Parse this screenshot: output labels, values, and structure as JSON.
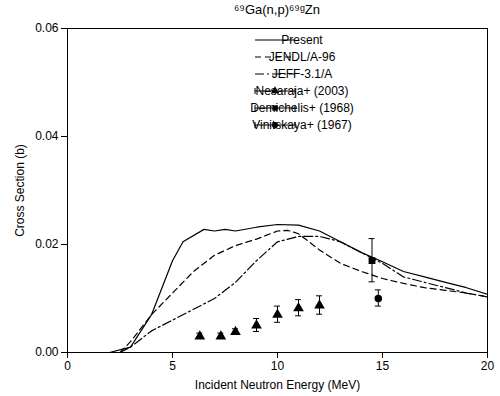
{
  "chart_data": {
    "type": "line",
    "title": "⁶⁹Ga(n,p)⁶⁹ᵍZn",
    "x_label": "Incident Neutron Energy (MeV)",
    "y_label": "Cross Section (b)",
    "xlim": [
      0,
      20
    ],
    "xticks": [
      0,
      5,
      10,
      15,
      20
    ],
    "ylim": [
      0,
      0.06
    ],
    "yticks": [
      {
        "value": 0,
        "label": "0.00"
      },
      {
        "value": 0.02,
        "label": "0.02"
      },
      {
        "value": 0.04,
        "label": "0.04"
      },
      {
        "value": 0.06,
        "label": "0.06"
      }
    ],
    "legend": "upper right",
    "grid": false,
    "series": [
      {
        "name": "Present",
        "type": "line",
        "line_style": "solid",
        "color": "#000000",
        "x": [
          2,
          3,
          4,
          5,
          5.5,
          6.5,
          7,
          7.5,
          8,
          9,
          10,
          11,
          12,
          13,
          14,
          15,
          16,
          17,
          18,
          19,
          20
        ],
        "values": [
          0,
          0.001,
          0.007,
          0.017,
          0.0205,
          0.0228,
          0.0225,
          0.0228,
          0.0225,
          0.0232,
          0.0237,
          0.0236,
          0.0225,
          0.0205,
          0.0185,
          0.0168,
          0.015,
          0.014,
          0.013,
          0.012,
          0.0108
        ]
      },
      {
        "name": "JENDL/A-96",
        "type": "line",
        "line_style": "dashed",
        "color": "#000000",
        "x": [
          2.5,
          3,
          4,
          5,
          6,
          7,
          8,
          9,
          10,
          10.5,
          11,
          12,
          13,
          14,
          15,
          16,
          17,
          18,
          19,
          20
        ],
        "values": [
          0,
          0.002,
          0.007,
          0.011,
          0.015,
          0.018,
          0.0198,
          0.021,
          0.0225,
          0.0226,
          0.022,
          0.019,
          0.0165,
          0.015,
          0.0137,
          0.0128,
          0.012,
          0.0115,
          0.011,
          0.0103
        ]
      },
      {
        "name": "JEFF-3.1/A",
        "type": "line",
        "line_style": "dashdot",
        "color": "#000000",
        "x": [
          2.5,
          3,
          4,
          5,
          6,
          7,
          8,
          9,
          10,
          11,
          12,
          13,
          14,
          15,
          16,
          17,
          18,
          19,
          20
        ],
        "values": [
          0,
          0.001,
          0.004,
          0.006,
          0.008,
          0.01,
          0.013,
          0.017,
          0.0205,
          0.0215,
          0.0215,
          0.0205,
          0.0185,
          0.0165,
          0.014,
          0.013,
          0.012,
          0.011,
          0.0103
        ]
      },
      {
        "name": "Nesaraja+ (2003)",
        "type": "scatter",
        "marker": "triangle",
        "color": "#000000",
        "x": [
          6.3,
          7.3,
          8,
          9,
          10,
          11,
          12
        ],
        "values": [
          0.003,
          0.003,
          0.0038,
          0.005,
          0.007,
          0.0082,
          0.0087
        ],
        "errors": [
          0.0005,
          0.0005,
          0.0005,
          0.0012,
          0.0015,
          0.0015,
          0.0017
        ]
      },
      {
        "name": "Demichelis+ (1968)",
        "type": "scatter",
        "marker": "square",
        "color": "#000000",
        "x": [
          14.5
        ],
        "values": [
          0.017
        ],
        "errors": [
          0.004
        ]
      },
      {
        "name": "Vinitskaya+ (1967)",
        "type": "scatter",
        "marker": "circle",
        "color": "#000000",
        "x": [
          14.8
        ],
        "values": [
          0.01
        ],
        "errors": [
          0.0015
        ]
      }
    ]
  }
}
